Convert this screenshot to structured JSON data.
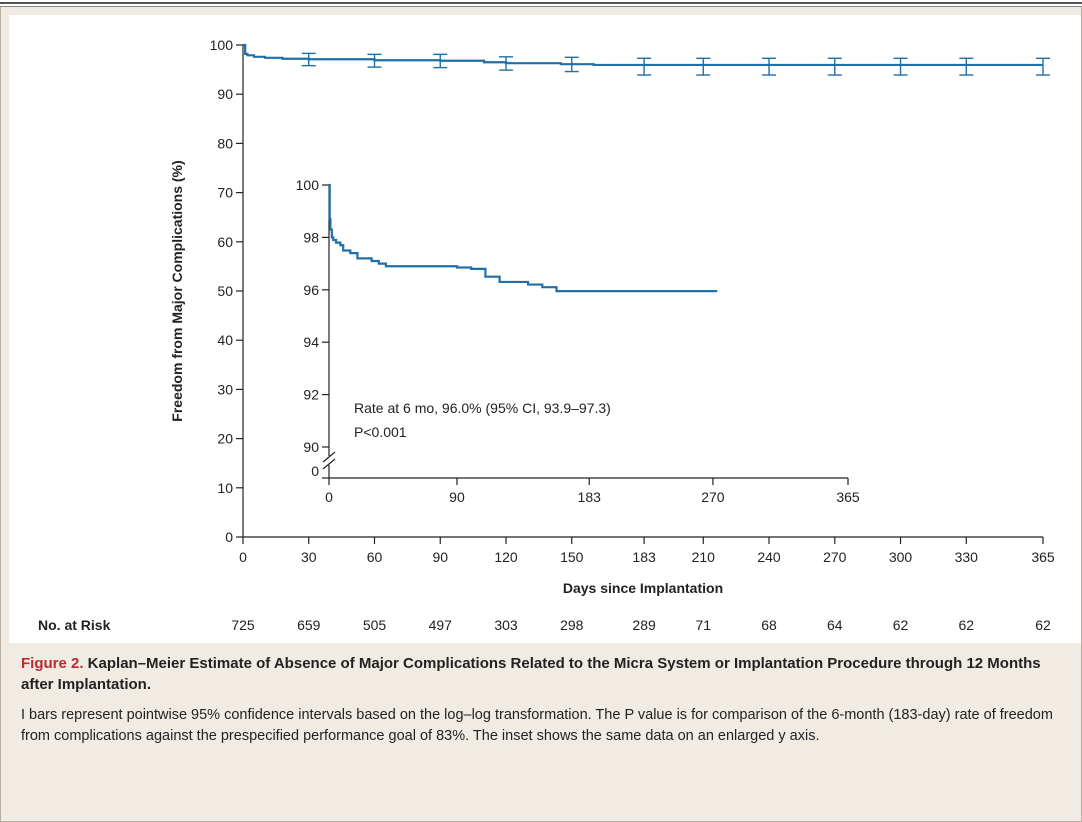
{
  "chart_data": [
    {
      "type": "line",
      "name": "main",
      "xlabel": "Days since Implantation",
      "ylabel": "Freedom from Major Complications (%)",
      "xlim": [
        0,
        365
      ],
      "ylim": [
        0,
        100
      ],
      "x_ticks": [
        0,
        30,
        60,
        90,
        120,
        150,
        183,
        210,
        240,
        270,
        300,
        330,
        365
      ],
      "y_ticks": [
        0,
        10,
        20,
        30,
        40,
        50,
        60,
        70,
        80,
        90,
        100
      ],
      "color": "#1f6fa8",
      "x": [
        0,
        1,
        2,
        5,
        10,
        18,
        30,
        60,
        90,
        110,
        120,
        145,
        160,
        183,
        210,
        240,
        270,
        300,
        330,
        365
      ],
      "y": [
        100,
        98.2,
        97.9,
        97.6,
        97.4,
        97.2,
        97.1,
        96.9,
        96.8,
        96.5,
        96.3,
        96.1,
        95.95,
        95.95,
        95.95,
        95.95,
        95.95,
        95.95,
        95.95,
        95.95
      ],
      "error_bars": [
        {
          "x": 30,
          "y": 97.1,
          "lo": 95.8,
          "hi": 98.3
        },
        {
          "x": 60,
          "y": 96.9,
          "lo": 95.5,
          "hi": 98.1
        },
        {
          "x": 90,
          "y": 96.8,
          "lo": 95.4,
          "hi": 98.1
        },
        {
          "x": 120,
          "y": 96.3,
          "lo": 94.9,
          "hi": 97.6
        },
        {
          "x": 150,
          "y": 96.1,
          "lo": 94.6,
          "hi": 97.5
        },
        {
          "x": 183,
          "y": 95.95,
          "lo": 93.9,
          "hi": 97.3
        },
        {
          "x": 210,
          "y": 95.95,
          "lo": 93.9,
          "hi": 97.3
        },
        {
          "x": 240,
          "y": 95.95,
          "lo": 93.9,
          "hi": 97.3
        },
        {
          "x": 270,
          "y": 95.95,
          "lo": 93.9,
          "hi": 97.3
        },
        {
          "x": 300,
          "y": 95.95,
          "lo": 93.9,
          "hi": 97.3
        },
        {
          "x": 330,
          "y": 95.95,
          "lo": 93.9,
          "hi": 97.3
        },
        {
          "x": 365,
          "y": 95.95,
          "lo": 93.9,
          "hi": 97.3
        }
      ],
      "at_risk_label": "No. at Risk",
      "at_risk": [
        "725",
        "659",
        "505",
        "497",
        "303",
        "298",
        "289",
        "71",
        "68",
        "64",
        "62",
        "62",
        "62"
      ]
    },
    {
      "type": "line",
      "name": "inset",
      "xlim": [
        0,
        365
      ],
      "ylim": [
        90,
        100
      ],
      "x_ticks": [
        0,
        90,
        183,
        270,
        365
      ],
      "y_ticks": [
        90,
        92,
        94,
        96,
        98,
        100
      ],
      "y_break_label": "0",
      "color": "#1f6fa8",
      "x": [
        0,
        0.5,
        1,
        2,
        3,
        5,
        8,
        10,
        15,
        20,
        30,
        35,
        40,
        50,
        60,
        70,
        80,
        90,
        100,
        110,
        120,
        130,
        140,
        150,
        160,
        170,
        183,
        200,
        220,
        240,
        260,
        273
      ],
      "y": [
        100,
        98.7,
        98.3,
        98.0,
        97.9,
        97.8,
        97.7,
        97.5,
        97.4,
        97.2,
        97.1,
        97.0,
        96.9,
        96.9,
        96.9,
        96.9,
        96.9,
        96.85,
        96.8,
        96.5,
        96.3,
        96.3,
        96.2,
        96.1,
        95.95,
        95.95,
        95.95,
        95.95,
        95.95,
        95.95,
        95.95,
        95.95
      ],
      "annotation": [
        "Rate at 6 mo, 96.0% (95% CI, 93.9–97.3)",
        "P<0.001"
      ]
    }
  ],
  "caption": {
    "label": "Figure 2.",
    "title": " Kaplan–Meier Estimate of Absence of Major Complications Related to the Micra System or Implantation Procedure through 12 Months after Implantation.",
    "body": "I bars represent pointwise 95% confidence intervals based on the log–log transformation. The P value is for comparison of the 6-month (183-day) rate of freedom from complications against the prespecified performance goal of 83%. The inset shows the same data on an enlarged y axis."
  }
}
